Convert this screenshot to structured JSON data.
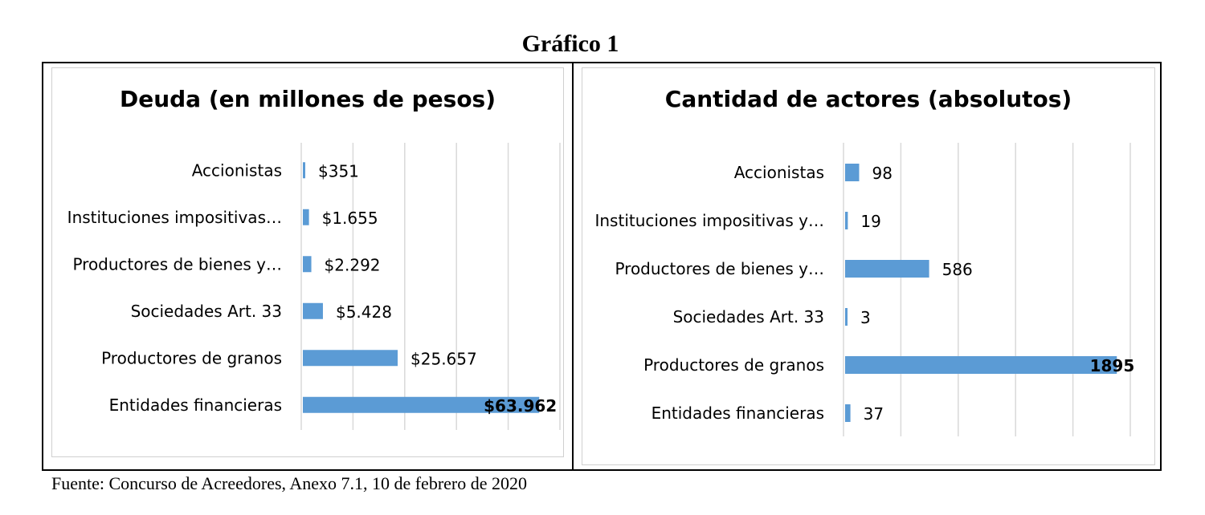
{
  "figure": {
    "title": "Gráfico 1",
    "source": "Fuente: Concurso de Acreedores, Anexo 7.1, 10 de febrero de 2020"
  },
  "chart_data": [
    {
      "type": "bar",
      "orientation": "horizontal",
      "title": "Deuda (en millones de pesos)",
      "categories": [
        "Accionistas",
        "Instituciones impositivas…",
        "Productores de bienes y…",
        "Sociedades Art. 33",
        "Productores de granos",
        "Entidades financieras"
      ],
      "values": [
        351,
        1655,
        2292,
        5428,
        25657,
        63962
      ],
      "value_labels": [
        "$351",
        "$1.655",
        "$2.292",
        "$5.428",
        "$25.657",
        "$63.962"
      ],
      "xlim": [
        0,
        70000
      ],
      "grid": true,
      "bar_color": "#5b9bd5"
    },
    {
      "type": "bar",
      "orientation": "horizontal",
      "title": "Cantidad de actores (absolutos)",
      "categories": [
        "Accionistas",
        "Instituciones impositivas y…",
        "Productores de bienes y…",
        "Sociedades Art. 33",
        "Productores de granos",
        "Entidades financieras"
      ],
      "values": [
        98,
        19,
        586,
        3,
        1895,
        37
      ],
      "value_labels": [
        "98",
        "19",
        "586",
        "3",
        "1895",
        "37"
      ],
      "xlim": [
        0,
        2000
      ],
      "grid": true,
      "bar_color": "#5b9bd5"
    }
  ]
}
